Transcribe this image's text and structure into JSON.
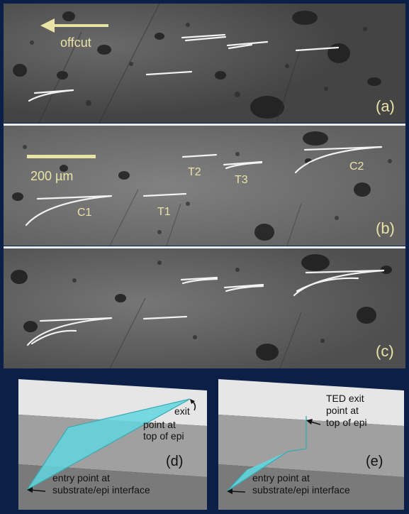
{
  "panel_a": {
    "label": "(a)",
    "offcut_label": "offcut"
  },
  "panel_b": {
    "label": "(b)",
    "scale_label": "200 µm",
    "defects": {
      "t1": "T1",
      "t2": "T2",
      "t3": "T3",
      "c1": "C1",
      "c2": "C2"
    }
  },
  "panel_c": {
    "label": "(c)"
  },
  "schematic_d": {
    "label": "(d)",
    "exit_lines": [
      "exit",
      "point at",
      "top of epi"
    ],
    "entry_lines": [
      "entry point at",
      "substrate/epi interface"
    ]
  },
  "schematic_e": {
    "label": "(e)",
    "exit_lines": [
      "TED exit",
      "point at",
      "top of epi"
    ],
    "entry_lines": [
      "entry point at",
      "substrate/epi interface"
    ]
  },
  "colors": {
    "frame": "#0b1f47",
    "label_yellow": "#e9e3a6",
    "dislocation_white": "#f2f2f2",
    "ted_cyan": "#5fd6df",
    "schematic_text": "#111111"
  }
}
